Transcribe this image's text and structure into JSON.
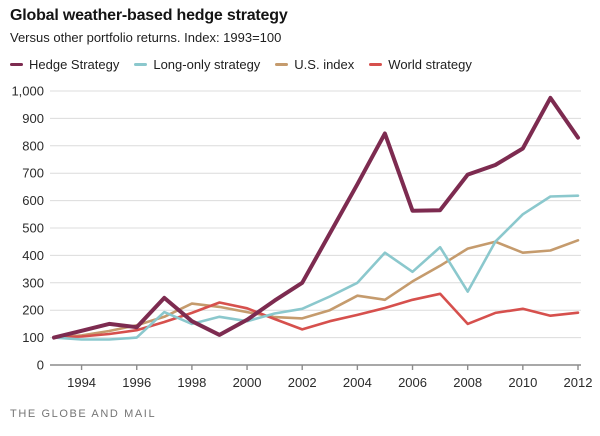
{
  "header": {
    "title": "Global weather-based hedge strategy",
    "subtitle": "Versus other portfolio returns. Index: 1993=100"
  },
  "legend": {
    "position": "top",
    "items": [
      {
        "label": "Hedge Strategy",
        "color": "#7d2b50"
      },
      {
        "label": "Long-only strategy",
        "color": "#8bc8cd"
      },
      {
        "label": "U.S. index",
        "color": "#c59b6d"
      },
      {
        "label": "World strategy",
        "color": "#d6504d"
      }
    ]
  },
  "chart_data": {
    "type": "line",
    "title": "Global weather-based hedge strategy",
    "subtitle": "Versus other portfolio returns. Index: 1993=100",
    "xlabel": "",
    "ylabel": "",
    "x": [
      1993,
      1994,
      1995,
      1996,
      1997,
      1998,
      1999,
      2000,
      2001,
      2002,
      2003,
      2004,
      2005,
      2006,
      2007,
      2008,
      2009,
      2010,
      2011,
      2012
    ],
    "x_range": [
      1993,
      2012
    ],
    "ylim": [
      0,
      1000
    ],
    "grid": "horizontal",
    "yticks": [
      {
        "value": 0,
        "label": "0"
      },
      {
        "value": 100,
        "label": "100"
      },
      {
        "value": 200,
        "label": "200"
      },
      {
        "value": 300,
        "label": "300"
      },
      {
        "value": 400,
        "label": "400"
      },
      {
        "value": 500,
        "label": "500"
      },
      {
        "value": 600,
        "label": "600"
      },
      {
        "value": 700,
        "label": "700"
      },
      {
        "value": 800,
        "label": "800"
      },
      {
        "value": 900,
        "label": "900"
      },
      {
        "value": 1000,
        "label": "1,000"
      }
    ],
    "xticks": [
      {
        "value": 1994,
        "label": "1994"
      },
      {
        "value": 1996,
        "label": "1996"
      },
      {
        "value": 1998,
        "label": "1998"
      },
      {
        "value": 2000,
        "label": "2000"
      },
      {
        "value": 2002,
        "label": "2002"
      },
      {
        "value": 2004,
        "label": "2004"
      },
      {
        "value": 2006,
        "label": "2006"
      },
      {
        "value": 2008,
        "label": "2008"
      },
      {
        "value": 2010,
        "label": "2010"
      },
      {
        "value": 2012,
        "label": "2012"
      }
    ],
    "series": [
      {
        "name": "U.S. index",
        "color": "#c59b6d",
        "stroke_width": 2.6,
        "values": [
          100,
          108,
          124,
          145,
          176,
          224,
          212,
          193,
          175,
          170,
          200,
          253,
          238,
          305,
          362,
          425,
          450,
          410,
          418,
          455
        ]
      },
      {
        "name": "World strategy",
        "color": "#d6504d",
        "stroke_width": 2.6,
        "values": [
          100,
          104,
          113,
          127,
          157,
          190,
          228,
          207,
          168,
          130,
          160,
          183,
          208,
          238,
          260,
          150,
          190,
          205,
          180,
          191
        ]
      },
      {
        "name": "Long-only strategy",
        "color": "#8bc8cd",
        "stroke_width": 2.6,
        "values": [
          100,
          93,
          93,
          100,
          193,
          150,
          176,
          160,
          188,
          205,
          250,
          300,
          410,
          340,
          430,
          268,
          450,
          550,
          615,
          618
        ]
      },
      {
        "name": "Hedge Strategy",
        "color": "#7d2b50",
        "stroke_width": 4,
        "values": [
          100,
          125,
          150,
          138,
          245,
          160,
          110,
          165,
          235,
          300,
          480,
          660,
          845,
          563,
          565,
          695,
          730,
          790,
          975,
          830
        ]
      }
    ]
  },
  "style": {
    "gridline_color": "#dcdcdc",
    "axis_color": "#8c8c8c",
    "tick_label_color": "#2b2b2b"
  },
  "footer": {
    "source": "THE GLOBE AND MAIL"
  }
}
